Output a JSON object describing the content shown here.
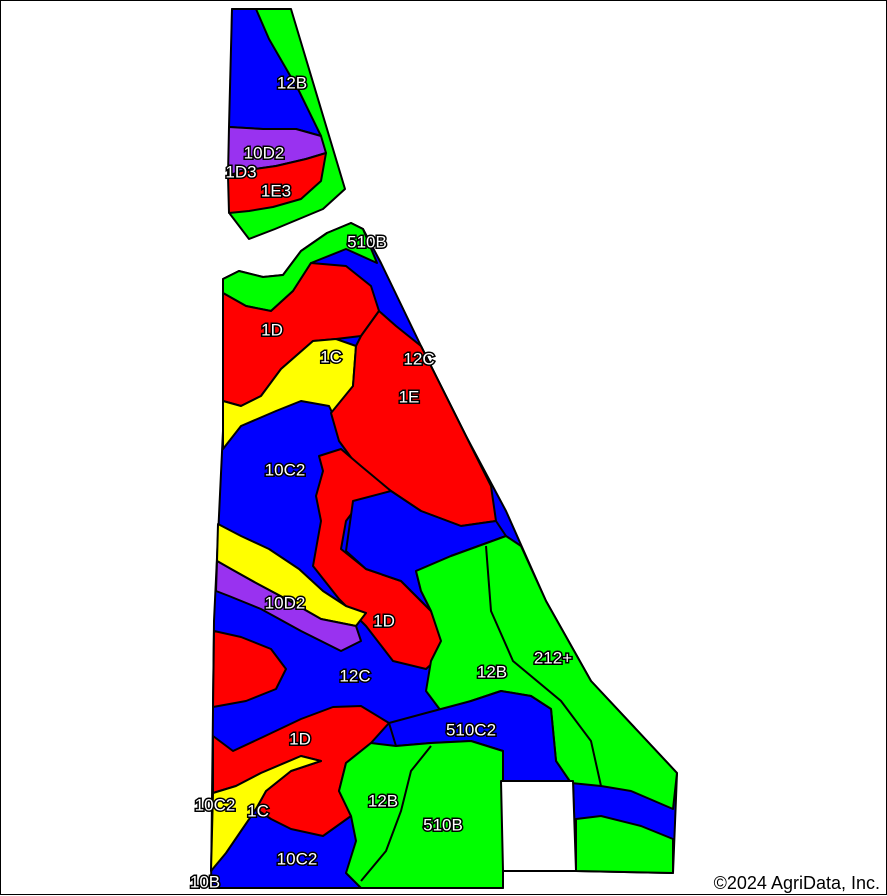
{
  "colors": {
    "blue": "#0000ff",
    "red": "#ff0000",
    "green": "#00ff00",
    "yellow": "#ffff00",
    "purple": "#9932f0",
    "background": "#ffffff",
    "outline": "#000000"
  },
  "soil_labels": {
    "l01": "12B",
    "l02": "10D2",
    "l03": "1D3",
    "l04": "1E3",
    "l05": "510B",
    "l06": "1D",
    "l07": "1C",
    "l08": "12C",
    "l09": "1E",
    "l10": "10C2",
    "l11": "10D2",
    "l12": "1D",
    "l13": "12C",
    "l14": "12B",
    "l15": "212+",
    "l16": "510C2",
    "l17": "1D",
    "l18": "12B",
    "l19": "10C2",
    "l20": "1C",
    "l21": "510B",
    "l22": "10C2",
    "l23": "10B"
  },
  "copyright": "©2024 AgriData, Inc."
}
